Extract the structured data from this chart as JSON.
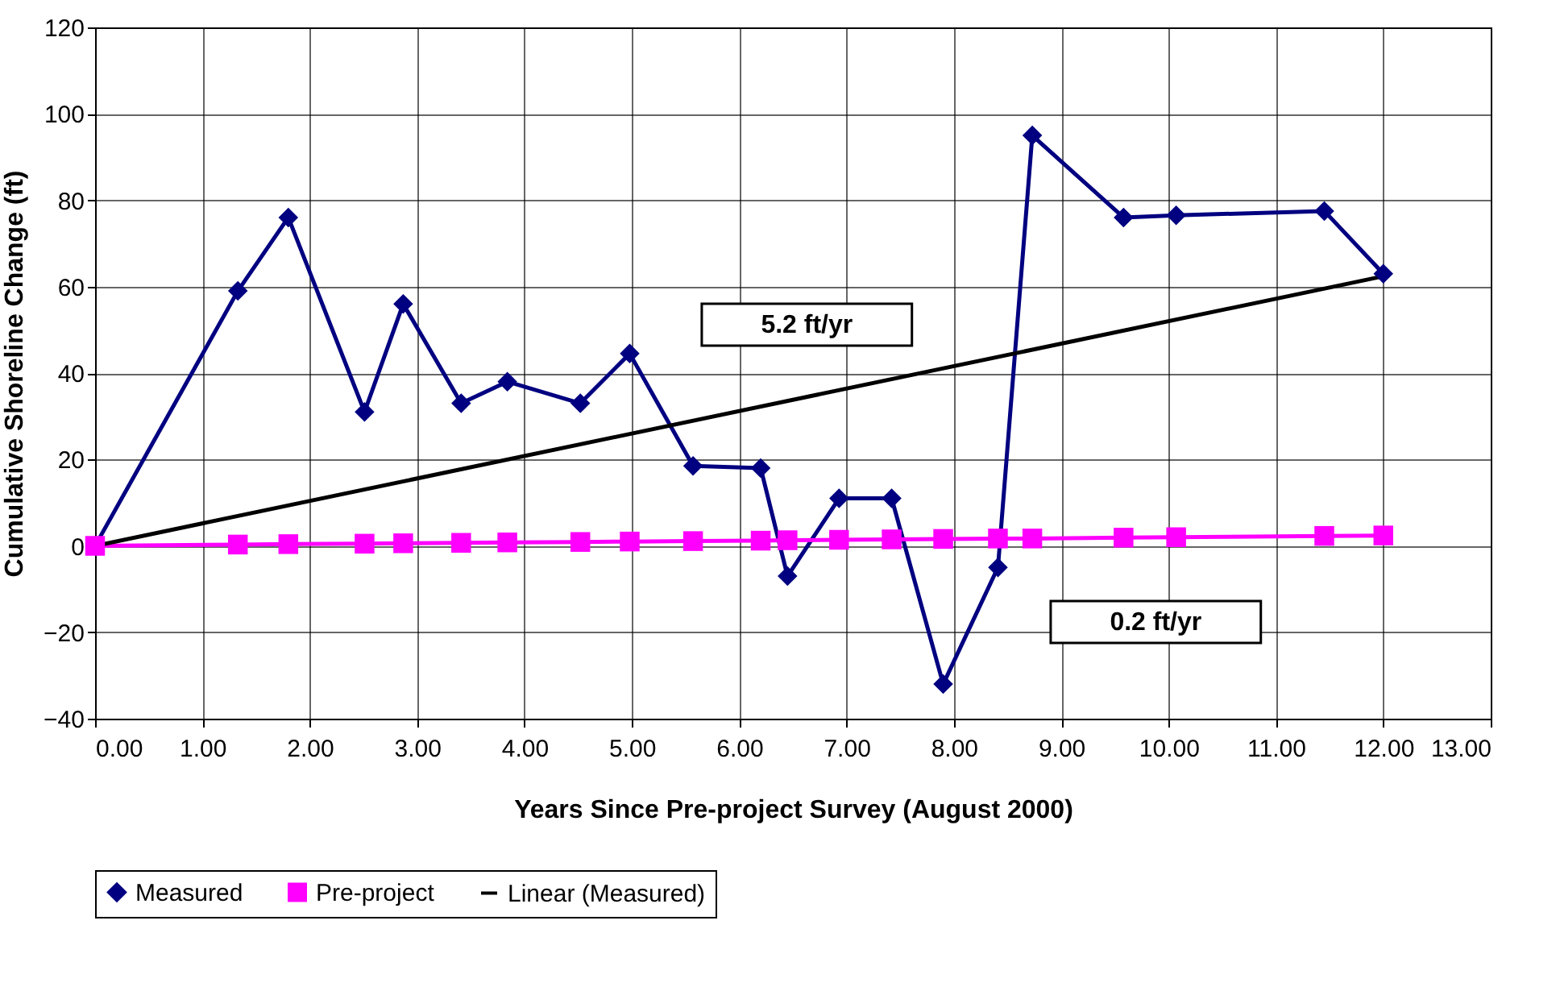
{
  "chart_data": {
    "type": "line",
    "xlabel": "Years Since Pre-project Survey (August 2000)",
    "ylabel": "Cumulative Shoreline Change (ft)",
    "x": [
      0,
      1.33,
      1.8,
      2.51,
      2.87,
      3.41,
      3.84,
      4.52,
      4.98,
      5.57,
      6.2,
      6.45,
      6.93,
      7.42,
      7.9,
      8.41,
      8.73,
      9.58,
      10.07,
      11.45,
      12
    ],
    "series": [
      {
        "name": "Measured",
        "color": "#000080",
        "marker": "diamond",
        "values": [
          0,
          59,
          76,
          31,
          56,
          33,
          38,
          33,
          44.5,
          18.5,
          18,
          -7,
          11,
          11,
          -32,
          -5,
          95,
          76,
          76.5,
          77.5,
          63
        ]
      },
      {
        "name": "Pre-project",
        "color": "#ff00ff",
        "marker": "square",
        "values": [
          0,
          0.3,
          0.4,
          0.5,
          0.6,
          0.7,
          0.8,
          0.9,
          1,
          1.1,
          1.2,
          1.3,
          1.4,
          1.5,
          1.6,
          1.7,
          1.7,
          1.9,
          2,
          2.3,
          2.4
        ]
      },
      {
        "name": "Linear (Measured)",
        "color": "#000000",
        "x": [
          0,
          12
        ],
        "values": [
          0,
          62.4
        ]
      }
    ],
    "xlim": [
      0,
      13
    ],
    "xticks": [
      {
        "value": 0,
        "label": "0.00"
      },
      {
        "value": 1,
        "label": "1.00"
      },
      {
        "value": 2,
        "label": "2.00"
      },
      {
        "value": 3,
        "label": "3.00"
      },
      {
        "value": 4,
        "label": "4.00"
      },
      {
        "value": 5,
        "label": "5.00"
      },
      {
        "value": 6,
        "label": "6.00"
      },
      {
        "value": 7,
        "label": "7.00"
      },
      {
        "value": 8,
        "label": "8.00"
      },
      {
        "value": 9,
        "label": "9.00"
      },
      {
        "value": 10,
        "label": "10.00"
      },
      {
        "value": 11,
        "label": "11.00"
      },
      {
        "value": 12,
        "label": "12.00"
      },
      {
        "value": 13,
        "label": "13.00"
      }
    ],
    "ylim": [
      -40,
      120
    ],
    "yticks": [
      -40,
      -20,
      0,
      20,
      40,
      60,
      80,
      100,
      120
    ],
    "grid": true,
    "legend": "bottom",
    "annotations": [
      "5.2 ft/yr",
      "0.2 ft/yr"
    ]
  }
}
